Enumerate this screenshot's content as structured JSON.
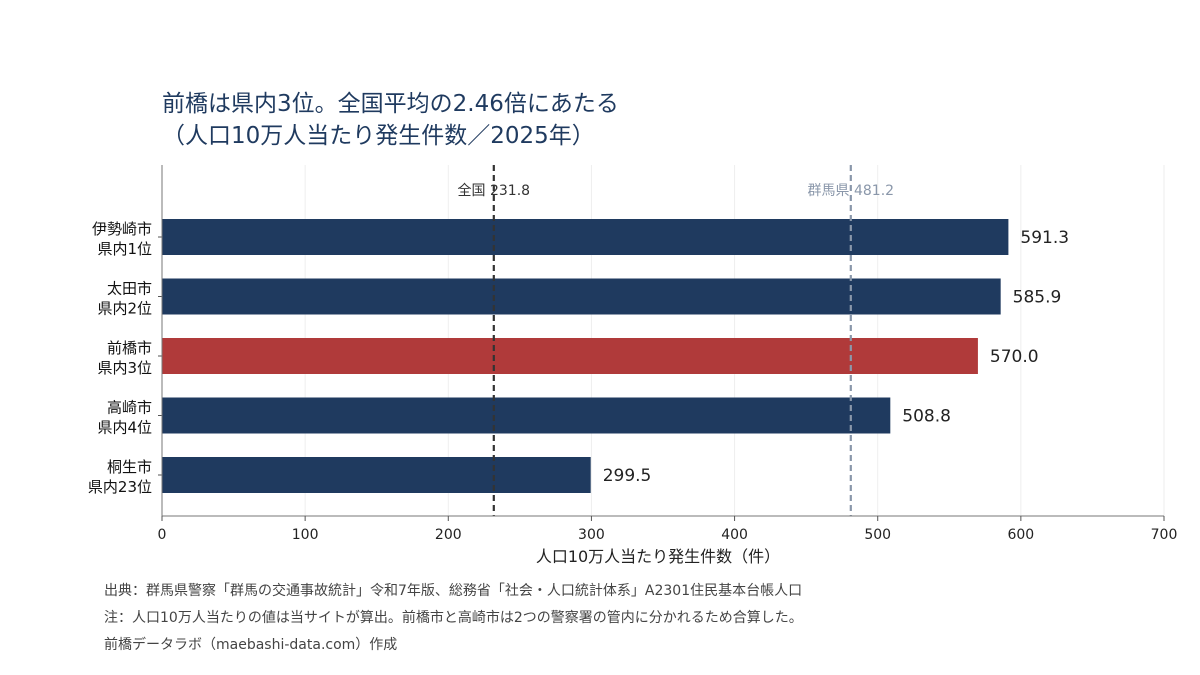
{
  "chart_data": {
    "type": "bar",
    "orientation": "horizontal",
    "title": "前橋は県内3位。全国平均の2.46倍にあたる",
    "subtitle": "（人口10万人当たり発生件数／2025年）",
    "categories": [
      {
        "name": "伊勢崎市",
        "rank": "県内1位"
      },
      {
        "name": "太田市",
        "rank": "県内2位"
      },
      {
        "name": "前橋市",
        "rank": "県内3位"
      },
      {
        "name": "高崎市",
        "rank": "県内4位"
      },
      {
        "name": "桐生市",
        "rank": "県内23位"
      }
    ],
    "values": [
      591.3,
      585.9,
      570.0,
      508.8,
      299.5
    ],
    "value_labels": [
      "591.3",
      "585.9",
      "570.0",
      "508.8",
      "299.5"
    ],
    "highlight_index": 2,
    "xlabel": "人口10万人当たり発生件数（件）",
    "xlim": [
      0,
      700
    ],
    "xticks": [
      0,
      100,
      200,
      300,
      400,
      500,
      600,
      700
    ],
    "grid": true,
    "reference_lines": [
      {
        "label": "全国 231.8",
        "value": 231.8,
        "color": "#333333"
      },
      {
        "label": "群馬県 481.2",
        "value": 481.2,
        "color": "#8a97aa"
      }
    ],
    "colors": {
      "bar": "#1f3a5f",
      "highlight": "#b03a3a"
    }
  },
  "notes": [
    "出典：群馬県警察「群馬の交通事故統計」令和7年版、総務省「社会・人口統計体系」A2301住民基本台帳人口",
    "注：人口10万人当たりの値は当サイトが算出。前橋市と高崎市は2つの警察署の管内に分かれるため合算した。",
    "前橋データラボ（maebashi-data.com）作成"
  ]
}
